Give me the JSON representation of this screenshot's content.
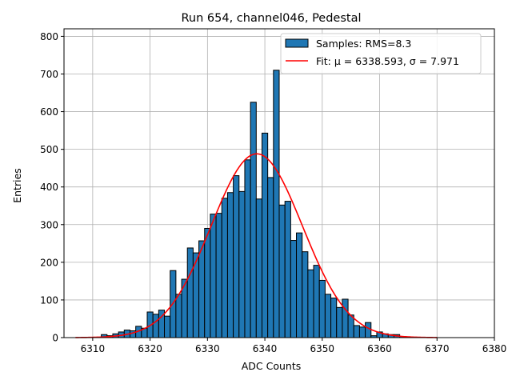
{
  "chart_data": {
    "type": "bar",
    "title": "Run 654, channel046, Pedestal",
    "xlabel": "ADC Counts",
    "ylabel": "Entries",
    "xlim": [
      6305,
      6380
    ],
    "ylim": [
      0,
      820
    ],
    "xticks": [
      6310,
      6320,
      6330,
      6340,
      6350,
      6360,
      6370,
      6380
    ],
    "yticks": [
      0,
      100,
      200,
      300,
      400,
      500,
      600,
      700,
      800
    ],
    "grid": true,
    "legend_position": "top-right",
    "bin_width": 1,
    "series": [
      {
        "name": "Samples: RMS=8.3",
        "kind": "histogram",
        "color": "#1f77b4",
        "edgecolor": "#000000",
        "bin_centers": [
          6312,
          6313,
          6314,
          6315,
          6316,
          6317,
          6318,
          6319,
          6320,
          6321,
          6322,
          6323,
          6324,
          6325,
          6326,
          6327,
          6328,
          6329,
          6330,
          6331,
          6332,
          6333,
          6334,
          6335,
          6336,
          6337,
          6338,
          6339,
          6340,
          6341,
          6342,
          6343,
          6344,
          6345,
          6346,
          6347,
          6348,
          6349,
          6350,
          6351,
          6352,
          6353,
          6354,
          6355,
          6356,
          6357,
          6358,
          6359,
          6360,
          6361,
          6362,
          6363,
          6364,
          6365
        ],
        "values": [
          8,
          5,
          10,
          15,
          20,
          18,
          30,
          25,
          68,
          62,
          73,
          57,
          178,
          115,
          155,
          238,
          225,
          257,
          290,
          328,
          330,
          370,
          385,
          430,
          388,
          472,
          625,
          368,
          543,
          425,
          710,
          352,
          362,
          258,
          278,
          228,
          180,
          192,
          152,
          115,
          105,
          80,
          102,
          60,
          32,
          28,
          40,
          5,
          15,
          10,
          8,
          8,
          3,
          2
        ]
      },
      {
        "name": "Fit: μ = 6338.593, σ = 7.971",
        "kind": "line",
        "color": "#ff0000",
        "mu": 6338.593,
        "sigma": 7.971,
        "amplitude": 488,
        "x_range": [
          6307,
          6370
        ]
      }
    ]
  }
}
